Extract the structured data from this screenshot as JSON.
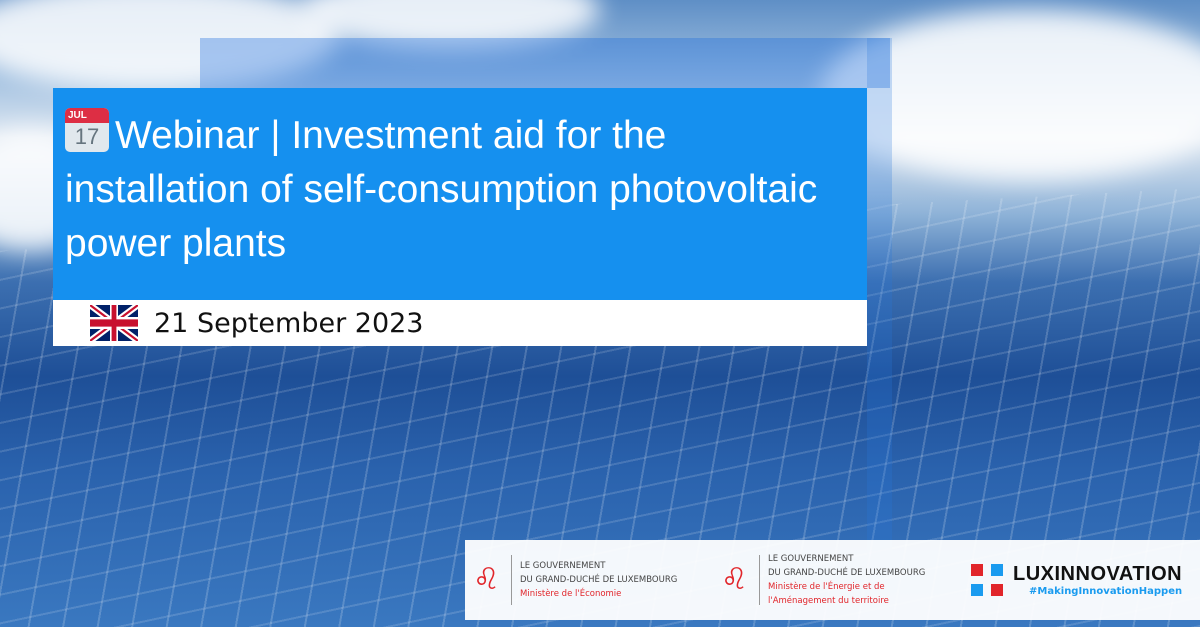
{
  "title": {
    "icon": "calendar-icon",
    "calendar_month": "JUL",
    "calendar_day": "17",
    "text": "Webinar | Investment aid for the installation of self-consumption photovoltaic power plants"
  },
  "event": {
    "flag": "uk-flag-icon",
    "date": "21 September 2023"
  },
  "footer": {
    "logo1": {
      "line1": "LE GOUVERNEMENT",
      "line2": "DU GRAND-DUCHÉ DE LUXEMBOURG",
      "ministry": "Ministère de l'Économie"
    },
    "logo2": {
      "line1": "LE GOUVERNEMENT",
      "line2": "DU GRAND-DUCHÉ DE LUXEMBOURG",
      "ministry1": "Ministère de l'Énergie et de",
      "ministry2": "l'Aménagement du territoire"
    },
    "luxinnovation": {
      "name": "LUXINNOVATION",
      "hashtag": "#MakingInnovationHappen"
    }
  },
  "colors": {
    "title_box": "#1590ef",
    "ministry_red": "#e1252a",
    "hashtag_blue": "#1a9bef"
  }
}
